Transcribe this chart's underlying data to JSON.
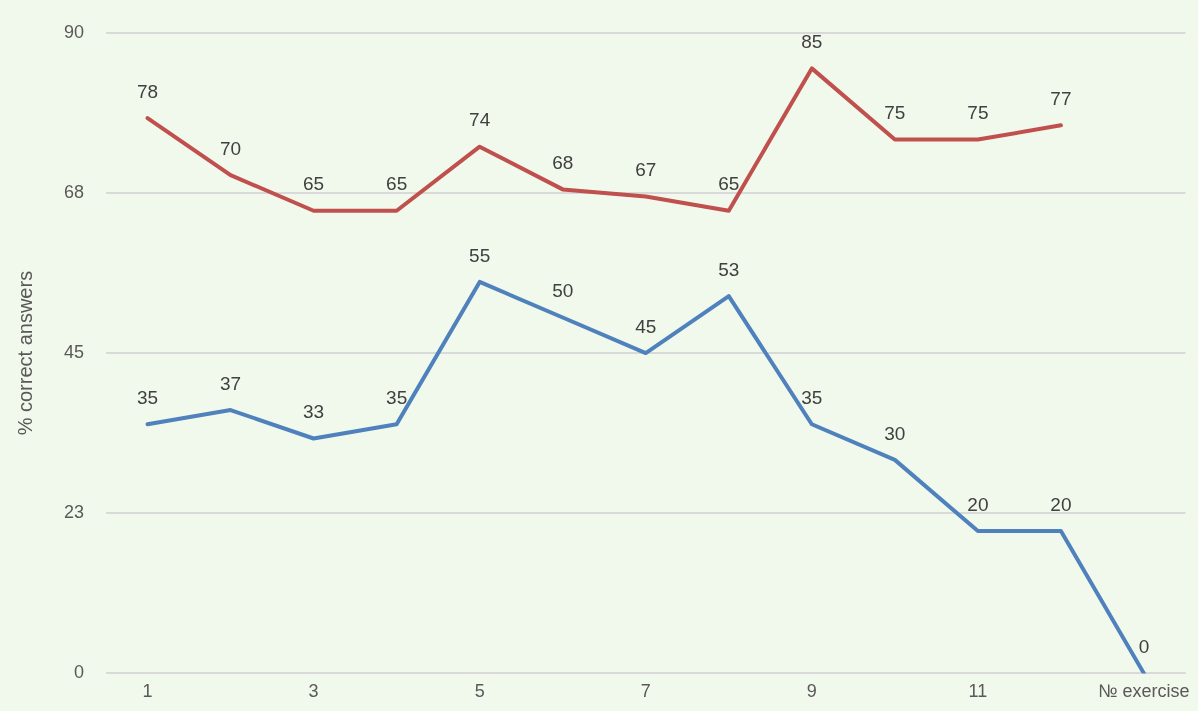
{
  "chart_data": {
    "type": "line",
    "ylabel": "% correct answers",
    "categories": [
      "1",
      null,
      "3",
      null,
      "5",
      null,
      "7",
      null,
      "9",
      null,
      "11",
      null,
      "№ exercise"
    ],
    "series": [
      {
        "color": "#c0504d",
        "values": [
          78,
          70,
          65,
          65,
          74,
          68,
          67,
          65,
          85,
          75,
          75,
          77,
          null
        ]
      },
      {
        "color": "#4f81bd",
        "values": [
          35,
          37,
          33,
          35,
          55,
          50,
          45,
          53,
          35,
          30,
          20,
          20,
          0
        ]
      }
    ],
    "ylim": [
      0,
      90
    ],
    "yticks": [
      0,
      {
        "value": 22.5,
        "label": "23"
      },
      45,
      {
        "value": 67.5,
        "label": "68"
      },
      90
    ],
    "grid": "y",
    "legend": false,
    "marker": "none",
    "line_style": "solid",
    "data_labels": true
  }
}
